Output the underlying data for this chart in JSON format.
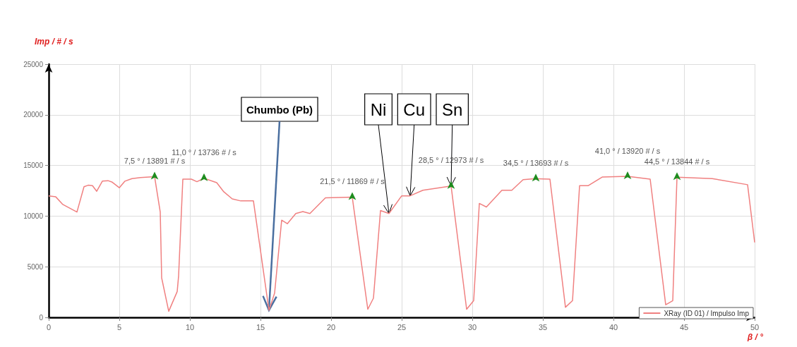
{
  "chart_data": {
    "type": "line",
    "xlabel": "β / °",
    "ylabel": "Imp / # / s",
    "xlim": [
      0,
      50
    ],
    "xticks": [
      0,
      5,
      10,
      15,
      20,
      25,
      30,
      35,
      40,
      45,
      50
    ],
    "ylim": [
      0,
      25000
    ],
    "yticks": [
      0,
      5000,
      10000,
      15000,
      20000,
      25000
    ],
    "grid": true,
    "legend": "bottom right",
    "marker": "none",
    "x": [
      0,
      0.5,
      1,
      2,
      2.5,
      2.8,
      3.1,
      3.4,
      3.8,
      4.2,
      4.5,
      5,
      5.4,
      5.9,
      6.5,
      7.5,
      7.9,
      8,
      8.5,
      9.1,
      9.2,
      9.5,
      10.1,
      10.5,
      11,
      11.9,
      12.4,
      13,
      13.6,
      14.5,
      15.6,
      16,
      16.5,
      16.9,
      17.5,
      18,
      18.5,
      19.6,
      21.5,
      22.6,
      23,
      23.5,
      24.1,
      25,
      25.6,
      26.5,
      28.5,
      29.6,
      30.1,
      30.5,
      31,
      32.1,
      32.8,
      33.6,
      34.5,
      35.5,
      36.6,
      37.1,
      37.6,
      38.2,
      39.2,
      41,
      42.6,
      43.7,
      44.2,
      44.5,
      47,
      49.5,
      50
    ],
    "series": [
      {
        "name": "XRay (ID 01) / Impulso Imp",
        "color": "#f08080",
        "values": [
          12000,
          11900,
          11150,
          10400,
          12900,
          13050,
          13000,
          12450,
          13450,
          13500,
          13350,
          12800,
          13450,
          13700,
          13800,
          13891,
          10400,
          3900,
          600,
          2550,
          4100,
          13650,
          13650,
          13400,
          13736,
          13300,
          12400,
          11700,
          11500,
          11500,
          700,
          2400,
          9600,
          9250,
          10250,
          10450,
          10250,
          11800,
          11869,
          800,
          1900,
          10550,
          10250,
          12000,
          12000,
          12550,
          12973,
          800,
          1650,
          11250,
          10900,
          12550,
          12550,
          13600,
          13693,
          13650,
          1000,
          1650,
          13000,
          13000,
          13850,
          13920,
          13650,
          1250,
          1650,
          13844,
          13700,
          13100,
          7400
        ],
        "value_labels": [
          null,
          null,
          null,
          null,
          null,
          null,
          null,
          null,
          null,
          null,
          null,
          null,
          null,
          null,
          null,
          "7,5 ° / 13891 # / s",
          null,
          null,
          null,
          null,
          null,
          null,
          null,
          null,
          "11,0 ° / 13736 # / s",
          null,
          null,
          null,
          null,
          null,
          null,
          null,
          null,
          null,
          null,
          null,
          null,
          null,
          "21,5 ° / 11869 # / s",
          null,
          null,
          null,
          null,
          null,
          null,
          null,
          "28,5 ° / 12973 # / s",
          null,
          null,
          null,
          null,
          null,
          null,
          null,
          "34,5 ° / 13693 # / s",
          null,
          null,
          null,
          null,
          null,
          null,
          "41,0 ° / 13920 # / s",
          null,
          null,
          null,
          "44,5 ° / 13844 # / s",
          null,
          null,
          null
        ]
      }
    ],
    "annotations": [
      {
        "text": "Chumbo (Pb)",
        "x": 15.6,
        "y": 700
      },
      {
        "text": "Ni",
        "x": 24.1,
        "y": 10250
      },
      {
        "text": "Cu",
        "x": 25.6,
        "y": 12000
      },
      {
        "text": "Sn",
        "x": 28.5,
        "y": 12973
      }
    ]
  }
}
